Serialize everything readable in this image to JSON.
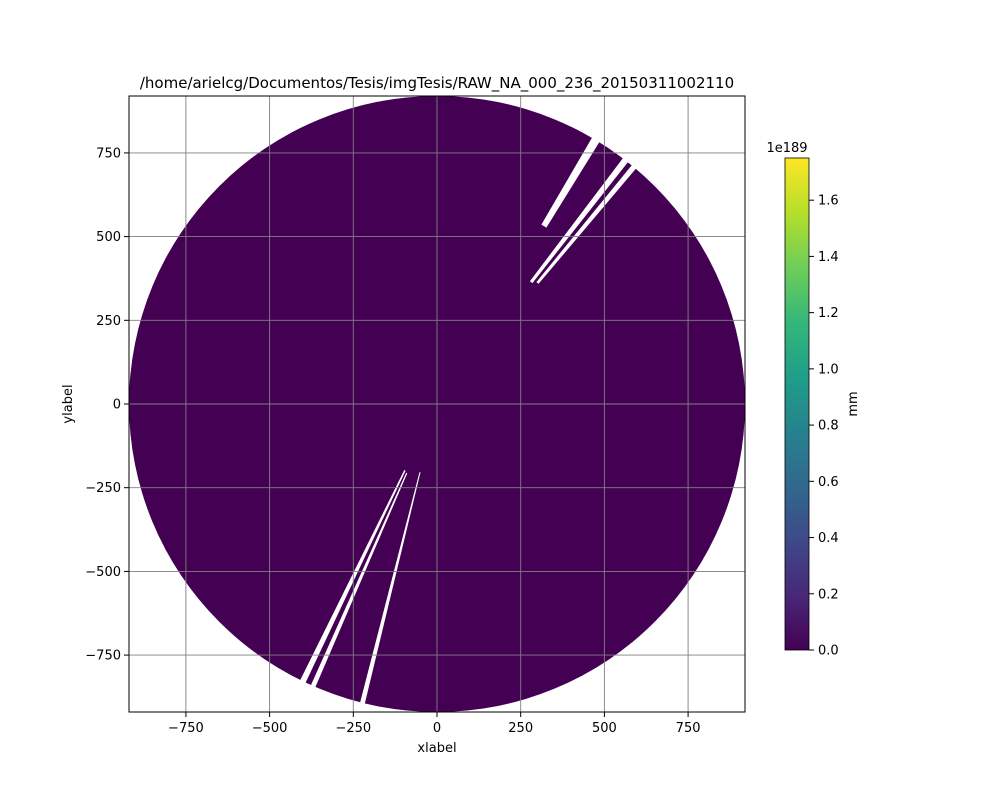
{
  "chart_data": {
    "type": "heatmap",
    "title": "/home/arielcg/Documentos/Tesis/imgTesis/RAW_NA_000_236_20150311002110",
    "xlabel": "xlabel",
    "ylabel": "ylabel",
    "xlim": [
      -920,
      920
    ],
    "ylim": [
      -920,
      920
    ],
    "x_ticks": [
      -750,
      -500,
      -250,
      0,
      250,
      500,
      750
    ],
    "y_ticks": [
      -750,
      -500,
      -250,
      0,
      250,
      500,
      750
    ],
    "x_tick_labels": [
      "−750",
      "−500",
      "−250",
      "0",
      "250",
      "500",
      "750"
    ],
    "y_tick_labels": [
      "−750",
      "−500",
      "−250",
      "0",
      "250",
      "500",
      "750"
    ],
    "grid": true,
    "disk_radius": 920,
    "fill_value": 0.0,
    "fill_color": "#440154",
    "gaps": [
      {
        "r_inner": 620,
        "angle_deg": 59.0,
        "width_deg": 1.6
      },
      {
        "r_inner": 460,
        "angle_deg": 52.3,
        "width_deg": 1.2
      },
      {
        "r_inner": 470,
        "angle_deg": 50.3,
        "width_deg": 1.0
      },
      {
        "r_inner": 220,
        "angle_deg": 244.2,
        "width_deg": 1.1
      },
      {
        "r_inner": 225,
        "angle_deg": 246.3,
        "width_deg": 0.9
      },
      {
        "r_inner": 210,
        "angle_deg": 256.0,
        "width_deg": 0.9
      }
    ],
    "colorbar": {
      "label": "mm",
      "offset_text": "1e189",
      "min": 0.0,
      "max": 1.75,
      "ticks": [
        0.0,
        0.2,
        0.4,
        0.6,
        0.8,
        1.0,
        1.2,
        1.4,
        1.6
      ],
      "tick_labels": [
        "0.0",
        "0.2",
        "0.4",
        "0.6",
        "0.8",
        "1.0",
        "1.2",
        "1.4",
        "1.6"
      ],
      "colormap": [
        "#440154",
        "#482878",
        "#3e4989",
        "#31688e",
        "#26828e",
        "#1f9e89",
        "#35b779",
        "#6ece58",
        "#b5de2b",
        "#fde725"
      ]
    }
  }
}
